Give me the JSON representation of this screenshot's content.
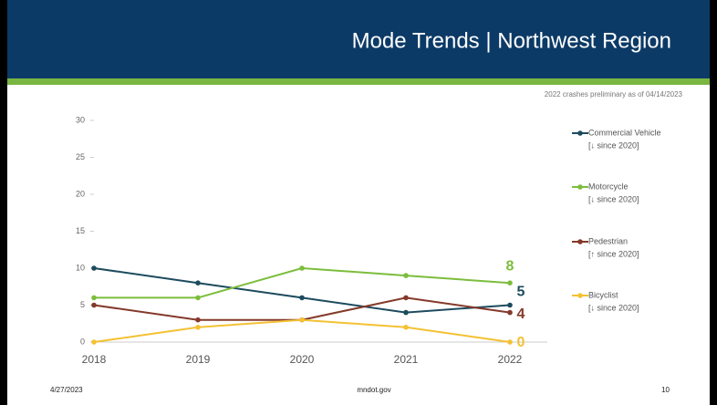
{
  "header": {
    "title": "Mode Trends | Northwest Region"
  },
  "note": "2022 crashes preliminary as of 04/14/2023",
  "chart_data": {
    "type": "line",
    "x": [
      "2018",
      "2019",
      "2020",
      "2021",
      "2022"
    ],
    "ylim": [
      0,
      30
    ],
    "yticks": [
      0,
      5,
      10,
      15,
      20,
      25,
      30
    ],
    "grid": false,
    "legend": "right",
    "series": [
      {
        "name": "Commercial Vehicle",
        "trend": "[↓ since 2020]",
        "color": "#1d4b5e",
        "values": [
          10,
          8,
          6,
          4,
          5
        ]
      },
      {
        "name": "Motorcycle",
        "trend": "[↓ since 2020]",
        "color": "#7cbd3c",
        "values": [
          6,
          6,
          10,
          9,
          8
        ]
      },
      {
        "name": "Pedestrian",
        "trend": "[↑ since 2020]",
        "color": "#84392a",
        "values": [
          5,
          3,
          3,
          6,
          4
        ]
      },
      {
        "name": "Bicyclist",
        "trend": "[↓ since 2020]",
        "color": "#f4c134",
        "values": [
          0,
          2,
          3,
          2,
          0
        ]
      }
    ]
  },
  "footer": {
    "date": "4/27/2023",
    "site": "mndot.gov",
    "page": "10"
  }
}
